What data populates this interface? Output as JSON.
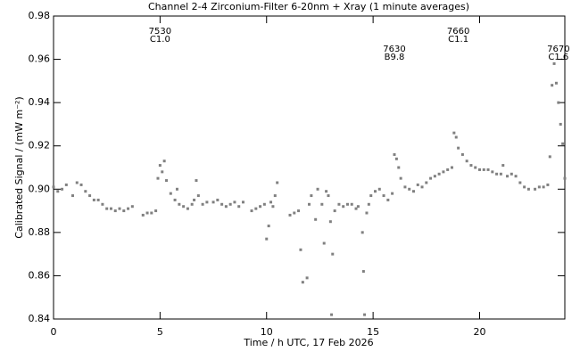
{
  "chart_data": {
    "type": "scatter",
    "title": "Channel 2-4   Zirconium-Filter   6-20nm + Xray   (1 minute averages)",
    "x_label": "Time / h UTC, 17 Feb 2026",
    "y_label": "Calibrated Signal / (mW m⁻²)",
    "color": "#808080",
    "xlim": [
      0,
      24
    ],
    "xticks": [
      0,
      5,
      10,
      15,
      20
    ],
    "ylim": [
      0.84,
      0.98
    ],
    "yticks": [
      0.84,
      0.86,
      0.88,
      {
        "value": 0.9,
        "label": "0.90"
      },
      0.92,
      0.94,
      0.96,
      0.98
    ],
    "annotations": [
      {
        "number": "7530",
        "class": "C1.0",
        "x": 5
      },
      {
        "number": "7630",
        "class": "B9.8",
        "x": 16
      },
      {
        "number": "7660",
        "class": "C1.1",
        "x": 19
      },
      {
        "number": "7670",
        "class": "C1.6",
        "x": 23.7
      }
    ],
    "x": [
      0.0,
      0.2,
      0.4,
      0.6,
      0.9,
      1.1,
      1.3,
      1.5,
      1.7,
      1.9,
      2.1,
      2.3,
      2.5,
      2.7,
      2.9,
      3.1,
      3.3,
      3.5,
      3.7,
      4.2,
      4.4,
      4.6,
      4.8,
      4.9,
      5.0,
      5.1,
      5.2,
      5.3,
      5.5,
      5.7,
      5.8,
      5.9,
      6.1,
      6.3,
      6.5,
      6.6,
      6.7,
      6.8,
      7.0,
      7.2,
      7.5,
      7.7,
      7.9,
      8.1,
      8.3,
      8.5,
      8.7,
      8.9,
      9.3,
      9.5,
      9.7,
      9.9,
      10.0,
      10.1,
      10.2,
      10.3,
      10.4,
      10.5,
      11.1,
      11.3,
      11.5,
      11.6,
      11.7,
      11.9,
      12.0,
      12.1,
      12.3,
      12.4,
      12.6,
      12.7,
      12.8,
      12.9,
      13.0,
      13.1,
      13.05,
      13.2,
      13.4,
      13.6,
      13.8,
      14.0,
      14.2,
      14.3,
      14.5,
      14.55,
      14.6,
      14.7,
      14.8,
      14.9,
      15.1,
      15.3,
      15.5,
      15.7,
      15.9,
      16.0,
      16.1,
      16.2,
      16.3,
      16.5,
      16.7,
      16.9,
      17.1,
      17.3,
      17.5,
      17.7,
      17.9,
      18.1,
      18.3,
      18.5,
      18.7,
      18.8,
      18.9,
      19.0,
      19.2,
      19.4,
      19.6,
      19.8,
      20.0,
      20.2,
      20.4,
      20.6,
      20.8,
      21.0,
      21.1,
      21.3,
      21.5,
      21.7,
      21.9,
      22.1,
      22.3,
      22.6,
      22.8,
      23.0,
      23.2,
      23.3,
      23.4,
      23.5,
      23.6,
      23.7,
      23.8,
      23.9,
      24.0
    ],
    "values": [
      0.901,
      0.899,
      0.9,
      0.902,
      0.897,
      0.903,
      0.902,
      0.899,
      0.897,
      0.895,
      0.895,
      0.893,
      0.891,
      0.891,
      0.89,
      0.891,
      0.89,
      0.891,
      0.892,
      0.888,
      0.889,
      0.889,
      0.89,
      0.905,
      0.911,
      0.908,
      0.913,
      0.904,
      0.898,
      0.895,
      0.9,
      0.893,
      0.892,
      0.891,
      0.893,
      0.895,
      0.904,
      0.897,
      0.893,
      0.894,
      0.894,
      0.895,
      0.893,
      0.892,
      0.893,
      0.894,
      0.892,
      0.894,
      0.89,
      0.891,
      0.892,
      0.893,
      0.877,
      0.883,
      0.894,
      0.892,
      0.897,
      0.903,
      0.888,
      0.889,
      0.89,
      0.872,
      0.857,
      0.859,
      0.893,
      0.897,
      0.886,
      0.9,
      0.893,
      0.875,
      0.899,
      0.897,
      0.885,
      0.87,
      0.842,
      0.89,
      0.893,
      0.892,
      0.893,
      0.893,
      0.891,
      0.892,
      0.88,
      0.862,
      0.842,
      0.889,
      0.893,
      0.897,
      0.899,
      0.9,
      0.897,
      0.895,
      0.898,
      0.916,
      0.914,
      0.91,
      0.905,
      0.901,
      0.9,
      0.899,
      0.902,
      0.901,
      0.903,
      0.905,
      0.906,
      0.907,
      0.908,
      0.909,
      0.91,
      0.926,
      0.924,
      0.919,
      0.916,
      0.913,
      0.911,
      0.91,
      0.909,
      0.909,
      0.909,
      0.908,
      0.907,
      0.907,
      0.911,
      0.906,
      0.907,
      0.906,
      0.903,
      0.901,
      0.9,
      0.9,
      0.901,
      0.901,
      0.902,
      0.915,
      0.948,
      0.958,
      0.949,
      0.94,
      0.93,
      0.921,
      0.905
    ]
  }
}
